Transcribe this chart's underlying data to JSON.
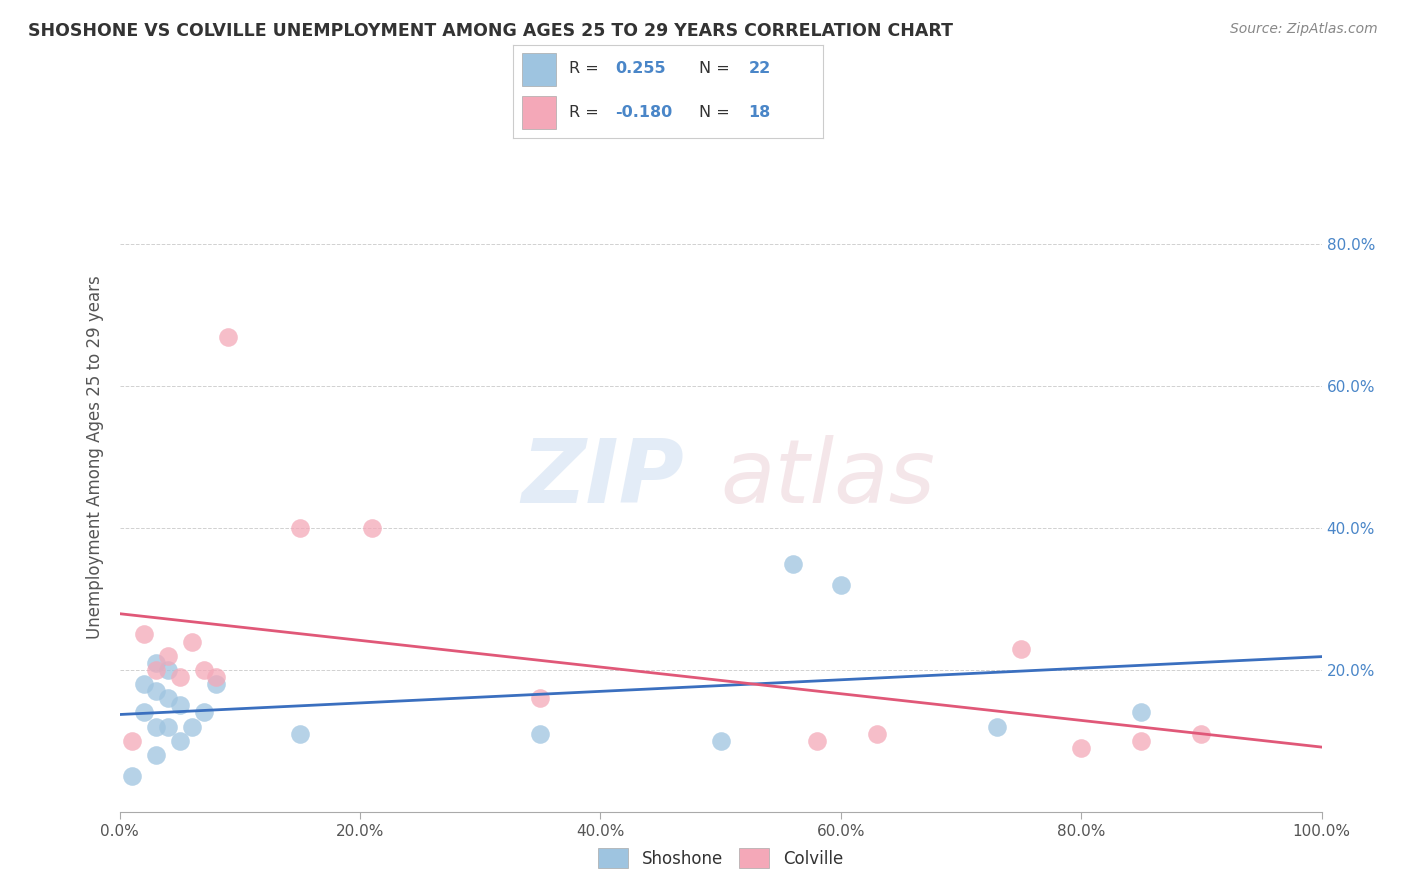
{
  "title": "SHOSHONE VS COLVILLE UNEMPLOYMENT AMONG AGES 25 TO 29 YEARS CORRELATION CHART",
  "source": "Source: ZipAtlas.com",
  "ylabel": "Unemployment Among Ages 25 to 29 years",
  "background_color": "#ffffff",
  "shoshone_color": "#9ec4e0",
  "colville_color": "#f4a8b8",
  "shoshone_line_color": "#3a6fbf",
  "colville_line_color": "#e05878",
  "legend_R_color": "#4a86c8",
  "legend_label_color": "#333333",
  "tick_color": "#555555",
  "grid_color": "#cccccc",
  "title_color": "#333333",
  "source_color": "#888888",
  "right_tick_color": "#4a86c8",
  "xlim": [
    0.0,
    1.0
  ],
  "ylim": [
    0.0,
    1.0
  ],
  "xticks": [
    0.0,
    0.2,
    0.4,
    0.6,
    0.8,
    1.0
  ],
  "yticks": [
    0.0,
    0.2,
    0.4,
    0.6,
    0.8
  ],
  "xticklabels": [
    "0.0%",
    "20.0%",
    "40.0%",
    "60.0%",
    "80.0%",
    "100.0%"
  ],
  "right_yticklabels": [
    "",
    "20.0%",
    "40.0%",
    "60.0%",
    "80.0%"
  ],
  "shoshone_x": [
    0.01,
    0.02,
    0.02,
    0.03,
    0.03,
    0.03,
    0.03,
    0.04,
    0.04,
    0.04,
    0.05,
    0.05,
    0.06,
    0.07,
    0.08,
    0.15,
    0.35,
    0.5,
    0.56,
    0.6,
    0.73,
    0.85
  ],
  "shoshone_y": [
    0.05,
    0.14,
    0.18,
    0.08,
    0.12,
    0.17,
    0.21,
    0.12,
    0.16,
    0.2,
    0.1,
    0.15,
    0.12,
    0.14,
    0.18,
    0.11,
    0.11,
    0.1,
    0.35,
    0.32,
    0.12,
    0.14
  ],
  "colville_x": [
    0.01,
    0.02,
    0.03,
    0.04,
    0.05,
    0.06,
    0.07,
    0.08,
    0.09,
    0.15,
    0.21,
    0.35,
    0.58,
    0.63,
    0.75,
    0.8,
    0.85,
    0.9
  ],
  "colville_y": [
    0.1,
    0.25,
    0.2,
    0.22,
    0.19,
    0.24,
    0.2,
    0.19,
    0.67,
    0.4,
    0.4,
    0.16,
    0.1,
    0.11,
    0.23,
    0.09,
    0.1,
    0.11
  ]
}
